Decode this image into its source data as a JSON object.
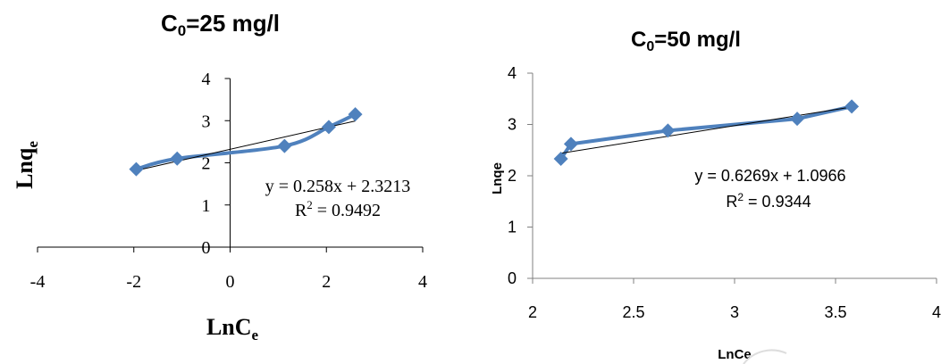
{
  "chart_data": [
    {
      "type": "scatter",
      "title_main": "C",
      "title_sub": "0",
      "title_rest": "=25 mg/l",
      "xlabel_main": "LnC",
      "xlabel_sub": "e",
      "ylabel_main": "Lnq",
      "ylabel_sub": "e",
      "xlim": [
        -4,
        4
      ],
      "ylim": [
        0,
        4
      ],
      "xticks": [
        -4,
        -2,
        0,
        2,
        4
      ],
      "yticks": [
        0,
        1,
        2,
        3,
        4
      ],
      "x": [
        -1.95,
        -1.1,
        1.13,
        2.05,
        2.6
      ],
      "y": [
        1.85,
        2.1,
        2.4,
        2.85,
        3.15
      ],
      "trendline": {
        "slope": 0.258,
        "intercept": 2.3213
      },
      "equation": "y = 0.258x + 2.3213",
      "r2_text": "R",
      "r2_sup": "2",
      "r2_value": " = 0.9492",
      "series_color": "#4f81bd",
      "trend_color": "#000000"
    },
    {
      "type": "scatter",
      "title_main": "C",
      "title_sub": "0",
      "title_rest": "=50 mg/l",
      "xlabel": "LnCe",
      "ylabel": "Lnqe",
      "xlim": [
        2,
        4
      ],
      "ylim": [
        0,
        4
      ],
      "xticks": [
        2,
        2.5,
        3,
        3.5,
        4
      ],
      "xtick_labels": [
        "2",
        "2.5",
        "3",
        "3.5",
        "4"
      ],
      "yticks": [
        0,
        1,
        2,
        3,
        4
      ],
      "x": [
        2.14,
        2.19,
        2.67,
        3.31,
        3.58
      ],
      "y": [
        2.33,
        2.62,
        2.88,
        3.11,
        3.35
      ],
      "trendline": {
        "slope": 0.6269,
        "intercept": 1.0966
      },
      "equation": "y = 0.6269x + 1.0966",
      "r2_text": "R",
      "r2_sup": "2",
      "r2_value": " = 0.9344",
      "series_color": "#4f81bd",
      "trend_color": "#000000"
    }
  ]
}
